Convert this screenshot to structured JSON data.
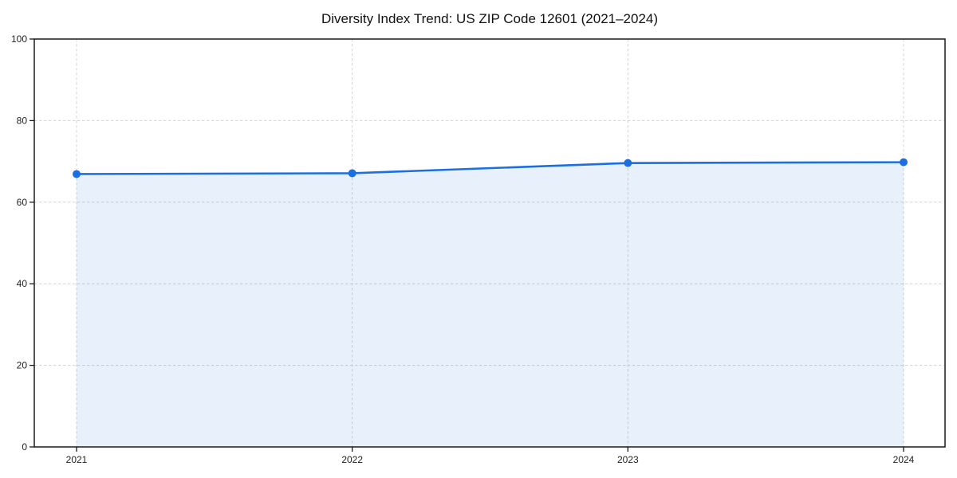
{
  "page": {
    "background": "#ffffff"
  },
  "chart_data": {
    "type": "area",
    "title": "Diversity Index Trend: US ZIP Code 12601 (2021–2024)",
    "categories": [
      "2021",
      "2022",
      "2023",
      "2024"
    ],
    "series": [
      {
        "name": "Diversity Index",
        "values": [
          66.9,
          67.1,
          69.6,
          69.8
        ]
      }
    ],
    "xlabel": "",
    "ylabel": "",
    "ylim": [
      0,
      100
    ],
    "yticks": [
      0,
      20,
      40,
      60,
      80,
      100
    ],
    "grid": true,
    "grid_style": "dashed",
    "legend_position": "none",
    "marker": "circle",
    "colors": {
      "line": "#1b6fe0",
      "marker": "#1b6fe0",
      "area_fill_rgba": "rgba(31,111,224,0.10)",
      "gridline": "#d4d4d4",
      "axis_frame": "#1a1a1a",
      "tick_label": "#222222",
      "title": "#111111",
      "background": "#ffffff"
    }
  }
}
